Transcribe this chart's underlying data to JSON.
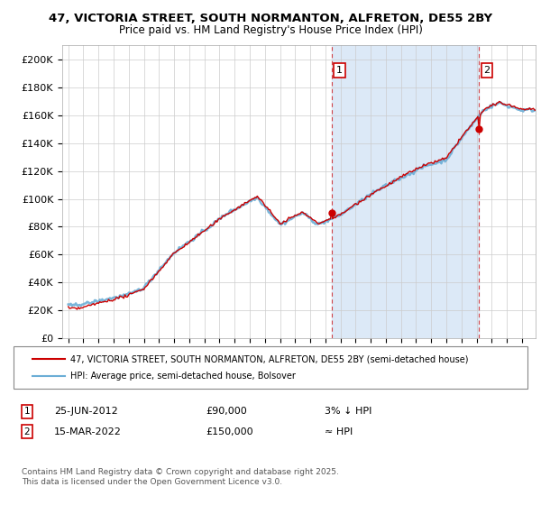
{
  "title_line1": "47, VICTORIA STREET, SOUTH NORMANTON, ALFRETON, DE55 2BY",
  "title_line2": "Price paid vs. HM Land Registry's House Price Index (HPI)",
  "background_color": "#ffffff",
  "plot_bg_color": "#ffffff",
  "shade_color": "#dce9f7",
  "sale1_date": "25-JUN-2012",
  "sale1_price": 90000,
  "sale1_label": "3% ↓ HPI",
  "sale2_date": "15-MAR-2022",
  "sale2_price": 150000,
  "sale2_label": "≈ HPI",
  "legend_line1": "47, VICTORIA STREET, SOUTH NORMANTON, ALFRETON, DE55 2BY (semi-detached house)",
  "legend_line2": "HPI: Average price, semi-detached house, Bolsover",
  "footer": "Contains HM Land Registry data © Crown copyright and database right 2025.\nThis data is licensed under the Open Government Licence v3.0.",
  "hpi_color": "#6baed6",
  "sale_color": "#cc0000",
  "ylim_min": 0,
  "ylim_max": 210000,
  "yticks": [
    0,
    20000,
    40000,
    60000,
    80000,
    100000,
    120000,
    140000,
    160000,
    180000,
    200000
  ],
  "ytick_labels": [
    "£0",
    "£20K",
    "£40K",
    "£60K",
    "£80K",
    "£100K",
    "£120K",
    "£140K",
    "£160K",
    "£180K",
    "£200K"
  ],
  "sale1_x": 2012.4167,
  "sale2_x": 2022.1667,
  "xmin": 1994.6,
  "xmax": 2025.9
}
